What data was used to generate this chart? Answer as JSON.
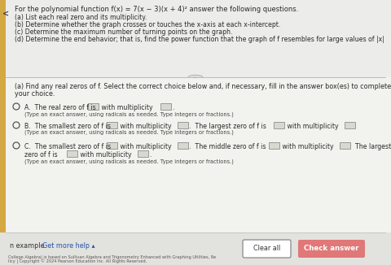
{
  "bg_color": "#e8e8e8",
  "panel_color": "#f5f5f0",
  "title_text": "For the polynomial function f(x) = 7(x − 3)(x + 4)² answer the following questions.",
  "questions": [
    "(a) List each real zero and its multiplicity.",
    "(b) Determine whether the graph crosses or touches the x-axis at each x-intercept.",
    "(c) Determine the maximum number of turning points on the graph.",
    "(d) Determine the end behavior; that is, find the power function that the graph of f resembles for large values of |x|"
  ],
  "part_a_header1": "(a) Find any real zeros of f. Select the correct choice below and, if necessary, fill in the answer box(es) to complete",
  "part_a_header2": "your choice.",
  "text_color": "#2a2a2a",
  "small_text_color": "#444444",
  "footer_color": "#555555",
  "btn_clear_bg": "#ffffff",
  "btn_check_bg": "#e07878",
  "btn_check_text": "#ffffff",
  "separator_color": "#bbbbbb",
  "left_bar_color": "#d4a843",
  "radio_color": "#555555",
  "box_bg": "#d8d8d0",
  "box_border": "#999999",
  "bottom_left_1": "n example",
  "bottom_left_2": "Get more help ▴",
  "btn_clear": "Clear all",
  "btn_check": "Check answer",
  "footer_line1": "College Algebra) is based on Sullivan Algebra and Trigonometry Enhanced with Graphing Utilities, 8e",
  "footer_line2": "licy | Copyright © 2024 Pearson Education Inc. All Rights Reserved."
}
